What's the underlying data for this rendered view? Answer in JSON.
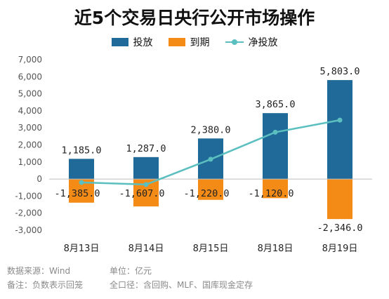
{
  "title": "近5个交易日央行公开市场操作",
  "legend": {
    "invest": "投放",
    "maturity": "到期",
    "net": "净投放"
  },
  "colors": {
    "invest": "#1f6a99",
    "maturity": "#f38b16",
    "net": "#5bbfc0"
  },
  "footer": {
    "source": "数据来源：Wind",
    "unit": "单位：亿元",
    "note": "备注：负数表示回笼",
    "scope": "全口径：含回购、MLF、国库现金定存"
  },
  "chart_data": {
    "type": "bar",
    "categories": [
      "8月13日",
      "8月14日",
      "8月15日",
      "8月18日",
      "8月19日"
    ],
    "series": [
      {
        "name": "投放",
        "type": "bar",
        "values": [
          1185.0,
          1287.0,
          2380.0,
          3865.0,
          5803.0
        ],
        "labels": [
          "1,185.0",
          "1,287.0",
          "2,380.0",
          "3,865.0",
          "5,803.0"
        ]
      },
      {
        "name": "到期",
        "type": "bar",
        "values": [
          -1385.0,
          -1607.0,
          -1220.0,
          -1120.0,
          -2346.0
        ],
        "labels": [
          "-1,385.0",
          "-1,607.0",
          "-1,220.0",
          "-1,120.0",
          "-2,346.0"
        ]
      },
      {
        "name": "净投放",
        "type": "line",
        "values": [
          -200.0,
          -320.0,
          1160.0,
          2745.0,
          3457.0
        ]
      }
    ],
    "ylim": [
      -3000,
      7000
    ],
    "yticks": [
      7000,
      6000,
      5000,
      4000,
      3000,
      2000,
      1000,
      0,
      -1000,
      -2000,
      -3000
    ],
    "ytick_labels": [
      "7,000",
      "6,000",
      "5,000",
      "4,000",
      "3,000",
      "2,000",
      "1,000",
      "0",
      "-1,000",
      "-2,000",
      "-3,000"
    ],
    "grid": false,
    "legend_position": "top-center"
  }
}
